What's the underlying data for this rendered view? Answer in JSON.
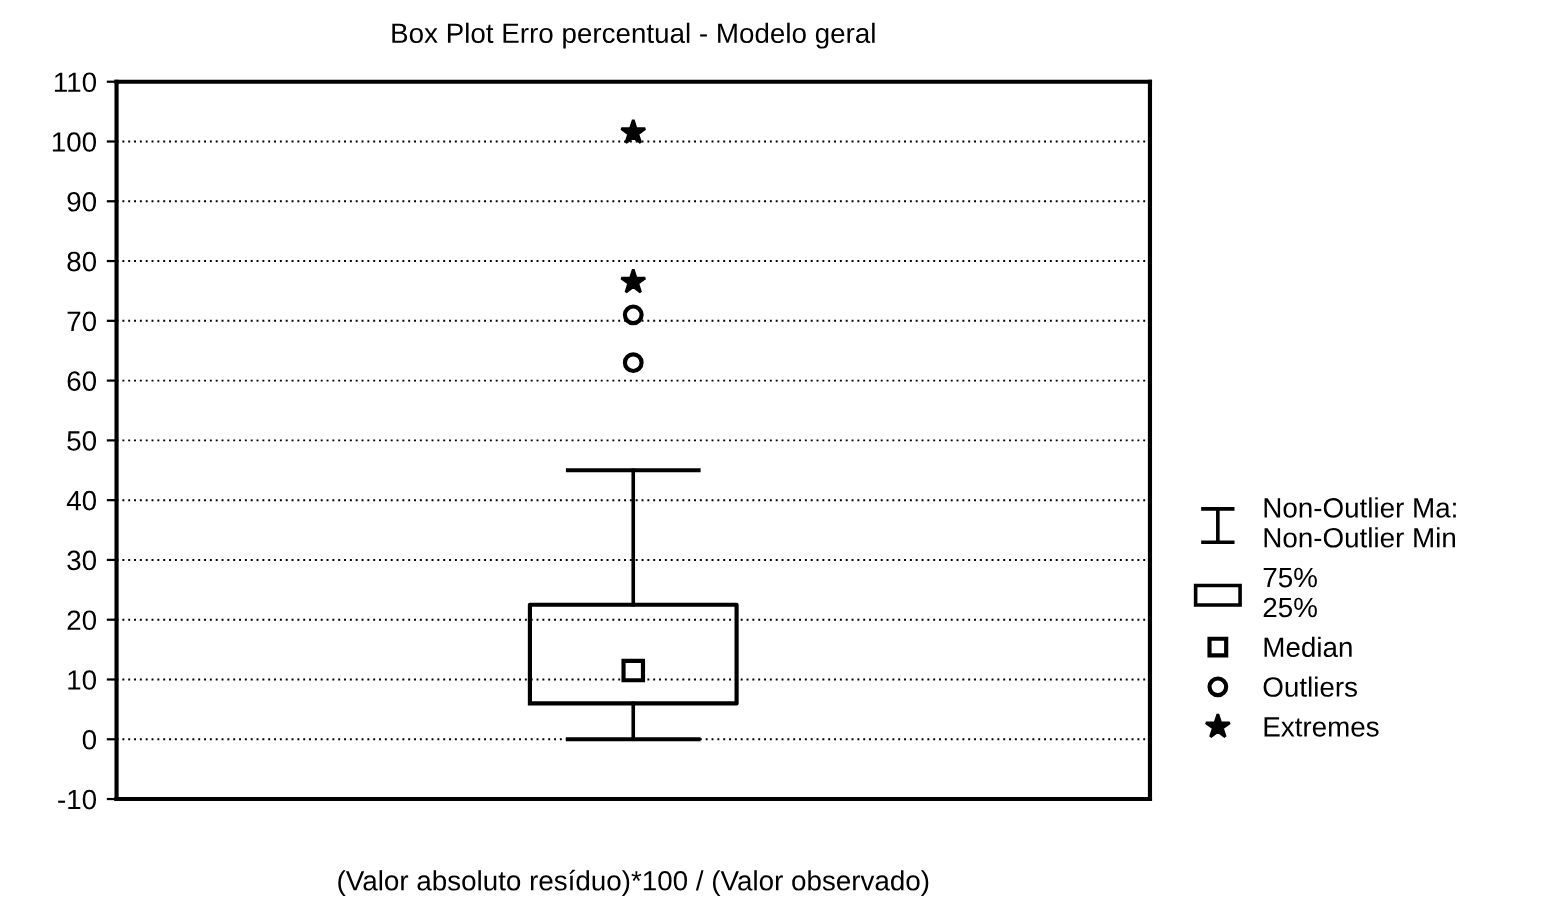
{
  "chart_data": {
    "type": "box",
    "title": "Box Plot Erro percentual - Modelo geral",
    "xlabel": "(Valor absoluto resíduo)*100 / (Valor observado)",
    "categories": [
      null
    ],
    "boxes": [
      {
        "low": 0,
        "q1": 6,
        "median": 11.5,
        "q3": 22.5,
        "high": 45,
        "outliers": [
          63,
          71
        ]
      }
    ],
    "series": [
      {
        "name": "Extremes",
        "type": "scatter",
        "marker": "star",
        "color": "#000000",
        "x": [
          null,
          null
        ],
        "values": [
          76.5,
          101.5
        ]
      }
    ],
    "annotations": [
      "Non-Outlier Ma:\nNon-Outlier Min",
      "75%\n25%",
      "Median",
      "Outliers"
    ],
    "ylim": [
      -10,
      110
    ],
    "yticks": [
      -10,
      0,
      10,
      20,
      30,
      40,
      50,
      60,
      70,
      80,
      90,
      100,
      110
    ],
    "grid": "y",
    "legend": "right"
  }
}
